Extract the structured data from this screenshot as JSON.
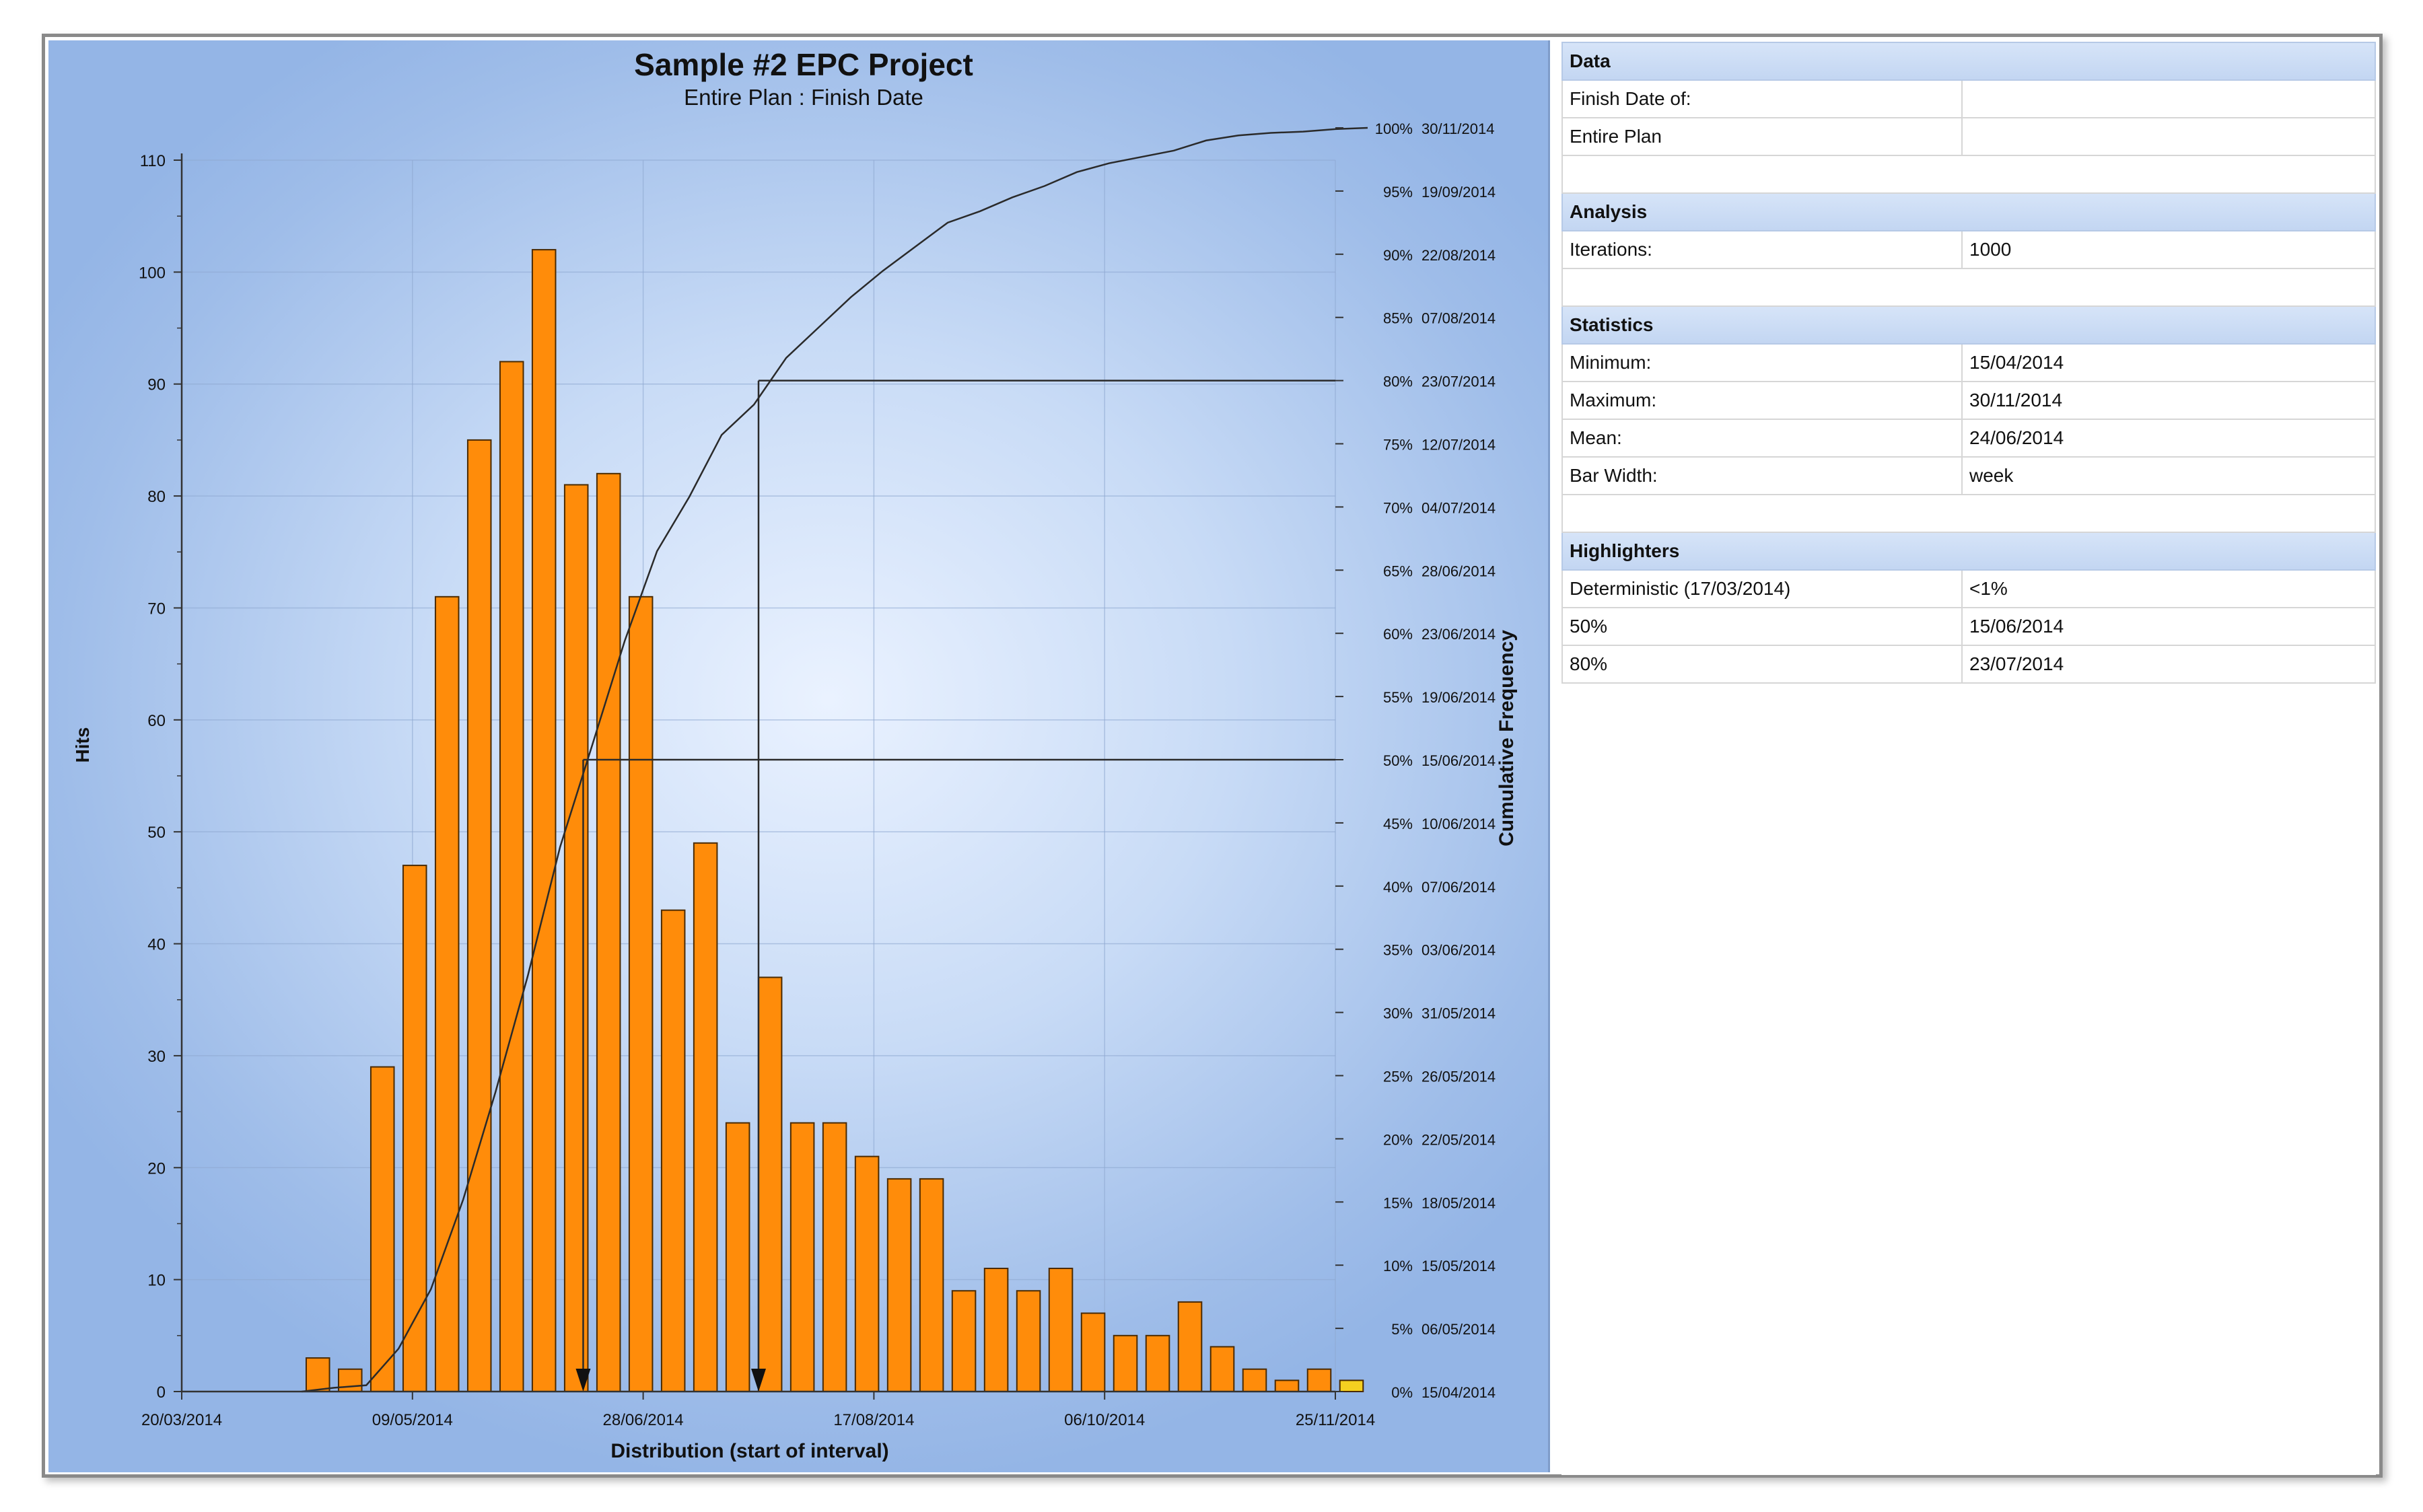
{
  "chart_data": {
    "type": "bar",
    "title": "Sample #2 EPC Project",
    "subtitle": "Entire Plan : Finish Date",
    "xlabel": "Distribution (start of interval)",
    "ylabel": "Hits",
    "y2label": "Cumulative Frequency",
    "ylim": [
      0,
      110
    ],
    "yticks": [
      "0",
      "10",
      "20",
      "30",
      "40",
      "50",
      "60",
      "70",
      "80",
      "90",
      "100",
      "110"
    ],
    "xticks": [
      {
        "date": "2014-03-20",
        "label": "20/03/2014"
      },
      {
        "date": "2014-05-09",
        "label": "09/05/2014"
      },
      {
        "date": "2014-06-28",
        "label": "28/06/2014"
      },
      {
        "date": "2014-08-17",
        "label": "17/08/2014"
      },
      {
        "date": "2014-10-06",
        "label": "06/10/2014"
      },
      {
        "date": "2014-11-25",
        "label": "25/11/2014"
      }
    ],
    "bars": [
      {
        "date": "2014-04-15",
        "hits": 3
      },
      {
        "date": "2014-04-22",
        "hits": 2
      },
      {
        "date": "2014-04-29",
        "hits": 29
      },
      {
        "date": "2014-05-06",
        "hits": 47
      },
      {
        "date": "2014-05-13",
        "hits": 71
      },
      {
        "date": "2014-05-20",
        "hits": 85
      },
      {
        "date": "2014-05-27",
        "hits": 92
      },
      {
        "date": "2014-06-03",
        "hits": 102
      },
      {
        "date": "2014-06-10",
        "hits": 81
      },
      {
        "date": "2014-06-17",
        "hits": 82
      },
      {
        "date": "2014-06-24",
        "hits": 71
      },
      {
        "date": "2014-07-01",
        "hits": 43
      },
      {
        "date": "2014-07-08",
        "hits": 49
      },
      {
        "date": "2014-07-15",
        "hits": 24
      },
      {
        "date": "2014-07-22",
        "hits": 37
      },
      {
        "date": "2014-07-29",
        "hits": 24
      },
      {
        "date": "2014-08-05",
        "hits": 24
      },
      {
        "date": "2014-08-12",
        "hits": 21
      },
      {
        "date": "2014-08-19",
        "hits": 19
      },
      {
        "date": "2014-08-26",
        "hits": 19
      },
      {
        "date": "2014-09-02",
        "hits": 9
      },
      {
        "date": "2014-09-09",
        "hits": 11
      },
      {
        "date": "2014-09-16",
        "hits": 9
      },
      {
        "date": "2014-09-23",
        "hits": 11
      },
      {
        "date": "2014-09-30",
        "hits": 7
      },
      {
        "date": "2014-10-07",
        "hits": 5
      },
      {
        "date": "2014-10-14",
        "hits": 5
      },
      {
        "date": "2014-10-21",
        "hits": 8
      },
      {
        "date": "2014-10-28",
        "hits": 4
      },
      {
        "date": "2014-11-04",
        "hits": 2
      },
      {
        "date": "2014-11-11",
        "hits": 1
      },
      {
        "date": "2014-11-18",
        "hits": 2
      },
      {
        "date": "2014-11-25",
        "hits": 1
      }
    ],
    "cumulative_axis": [
      {
        "pct": 0,
        "label": "0%",
        "date": "15/04/2014"
      },
      {
        "pct": 5,
        "label": "5%",
        "date": "06/05/2014"
      },
      {
        "pct": 10,
        "label": "10%",
        "date": "15/05/2014"
      },
      {
        "pct": 15,
        "label": "15%",
        "date": "18/05/2014"
      },
      {
        "pct": 20,
        "label": "20%",
        "date": "22/05/2014"
      },
      {
        "pct": 25,
        "label": "25%",
        "date": "26/05/2014"
      },
      {
        "pct": 30,
        "label": "30%",
        "date": "31/05/2014"
      },
      {
        "pct": 35,
        "label": "35%",
        "date": "03/06/2014"
      },
      {
        "pct": 40,
        "label": "40%",
        "date": "07/06/2014"
      },
      {
        "pct": 45,
        "label": "45%",
        "date": "10/06/2014"
      },
      {
        "pct": 50,
        "label": "50%",
        "date": "15/06/2014"
      },
      {
        "pct": 55,
        "label": "55%",
        "date": "19/06/2014"
      },
      {
        "pct": 60,
        "label": "60%",
        "date": "23/06/2014"
      },
      {
        "pct": 65,
        "label": "65%",
        "date": "28/06/2014"
      },
      {
        "pct": 70,
        "label": "70%",
        "date": "04/07/2014"
      },
      {
        "pct": 75,
        "label": "75%",
        "date": "12/07/2014"
      },
      {
        "pct": 80,
        "label": "80%",
        "date": "23/07/2014"
      },
      {
        "pct": 85,
        "label": "85%",
        "date": "07/08/2014"
      },
      {
        "pct": 90,
        "label": "90%",
        "date": "22/08/2014"
      },
      {
        "pct": 95,
        "label": "95%",
        "date": "19/09/2014"
      },
      {
        "pct": 100,
        "label": "100%",
        "date": "30/11/2014"
      }
    ],
    "highlight_lines": [
      {
        "pct": 50,
        "date": "2014-06-15"
      },
      {
        "pct": 80,
        "date": "2014-07-23"
      }
    ],
    "colors": {
      "bar_fill": "#ff8c0a",
      "bar_stroke": "#4a2a00",
      "last_bar_fill": "#f5d020",
      "line": "#2a2a2a"
    }
  },
  "table": {
    "rows": [
      {
        "type": "header",
        "c1": "Data"
      },
      {
        "type": "row",
        "c1": "Finish Date of:",
        "c2": ""
      },
      {
        "type": "row",
        "c1": "Entire Plan",
        "c2": ""
      },
      {
        "type": "blank"
      },
      {
        "type": "header",
        "c1": "Analysis"
      },
      {
        "type": "row",
        "c1": "Iterations:",
        "c2": "1000"
      },
      {
        "type": "blank"
      },
      {
        "type": "header",
        "c1": "Statistics"
      },
      {
        "type": "row",
        "c1": "Minimum:",
        "c2": "15/04/2014"
      },
      {
        "type": "row",
        "c1": "Maximum:",
        "c2": "30/11/2014"
      },
      {
        "type": "row",
        "c1": "Mean:",
        "c2": "24/06/2014"
      },
      {
        "type": "row",
        "c1": "Bar Width:",
        "c2": "week"
      },
      {
        "type": "blank"
      },
      {
        "type": "header",
        "c1": "Highlighters"
      },
      {
        "type": "row",
        "c1": "Deterministic (17/03/2014)",
        "c2": "<1%"
      },
      {
        "type": "row",
        "c1": "50%",
        "c2": "15/06/2014"
      },
      {
        "type": "row",
        "c1": "80%",
        "c2": "23/07/2014"
      }
    ]
  }
}
